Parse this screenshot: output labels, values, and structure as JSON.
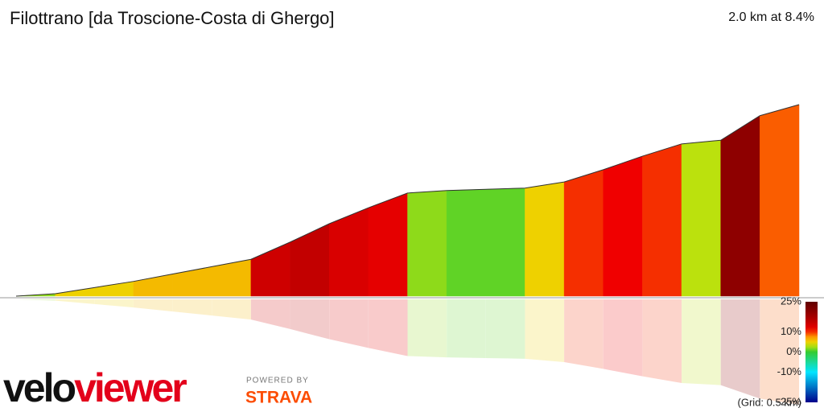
{
  "header": {
    "title": "Filottrano [da Troscione-Costa di Ghergo]",
    "summary": "2.0 km at 8.4%"
  },
  "chart_data": {
    "type": "gradient-profile",
    "segments": [
      2,
      5,
      5,
      6,
      6,
      6,
      14,
      15,
      13,
      12,
      2,
      1,
      1,
      5,
      10,
      11,
      10,
      3,
      20,
      9
    ],
    "scale_ticks": [
      {
        "value": 25,
        "label": "25%"
      },
      {
        "value": 10,
        "label": "10%"
      },
      {
        "value": 0,
        "label": "0%"
      },
      {
        "value": -10,
        "label": "-10%"
      },
      {
        "value": -25,
        "label": "-25%"
      }
    ],
    "grid_label": "(Grid: 0.5 km)"
  },
  "logo": {
    "velo": "velo",
    "viewer": "viewer",
    "powered": "POWERED BY",
    "strava": "STRAVA"
  }
}
